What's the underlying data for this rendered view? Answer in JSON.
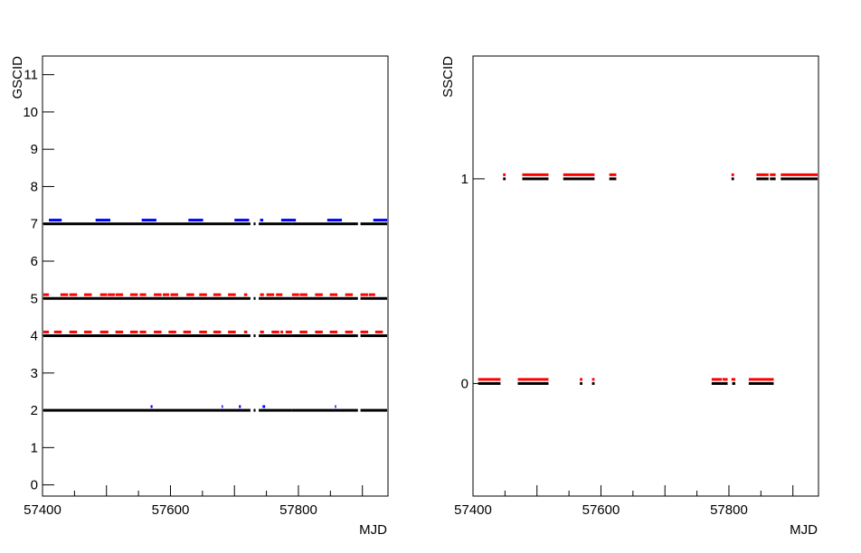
{
  "chart_data": [
    {
      "type": "scatter",
      "xlabel": "MJD",
      "ylabel": "GSCID",
      "xlim": [
        57400,
        57940
      ],
      "ylim": [
        -0.3,
        11.5
      ],
      "xticks": [
        57400,
        57600,
        57800
      ],
      "yticks": [
        0,
        1,
        2,
        3,
        4,
        5,
        6,
        7,
        8,
        9,
        10,
        11
      ],
      "grid": false,
      "series": [
        {
          "color": "#000000",
          "offset": 0,
          "segments": [
            {
              "y": 2,
              "ranges": [
                [
                  57400,
                  57725
                ],
                [
                  57730,
                  57733
                ],
                [
                  57738,
                  57790
                ],
                [
                  57790,
                  57893
                ],
                [
                  57897,
                  57940
                ]
              ]
            },
            {
              "y": 4,
              "ranges": [
                [
                  57400,
                  57725
                ],
                [
                  57730,
                  57733
                ],
                [
                  57738,
                  57790
                ],
                [
                  57790,
                  57893
                ],
                [
                  57897,
                  57940
                ]
              ]
            },
            {
              "y": 5,
              "ranges": [
                [
                  57400,
                  57725
                ],
                [
                  57730,
                  57733
                ],
                [
                  57738,
                  57790
                ],
                [
                  57790,
                  57893
                ],
                [
                  57897,
                  57940
                ]
              ]
            },
            {
              "y": 7,
              "ranges": [
                [
                  57400,
                  57725
                ],
                [
                  57730,
                  57733
                ],
                [
                  57738,
                  57790
                ],
                [
                  57790,
                  57893
                ],
                [
                  57897,
                  57940
                ]
              ]
            }
          ]
        },
        {
          "color": "#ff0000",
          "offset": 0.1,
          "segments": [
            {
              "y": 4,
              "ranges": [
                [
                  57400,
                  57410
                ],
                [
                  57418,
                  57430
                ],
                [
                  57442,
                  57454
                ],
                [
                  57465,
                  57477
                ],
                [
                  57490,
                  57503
                ],
                [
                  57514,
                  57526
                ],
                [
                  57537,
                  57549
                ],
                [
                  57552,
                  57562
                ],
                [
                  57574,
                  57586
                ],
                [
                  57597,
                  57609
                ],
                [
                  57620,
                  57632
                ],
                [
                  57645,
                  57657
                ],
                [
                  57667,
                  57679
                ],
                [
                  57690,
                  57702
                ],
                [
                  57715,
                  57720
                ],
                [
                  57740,
                  57746
                ],
                [
                  57758,
                  57770
                ],
                [
                  57772,
                  57776
                ],
                [
                  57780,
                  57790
                ],
                [
                  57802,
                  57814
                ],
                [
                  57826,
                  57838
                ],
                [
                  57849,
                  57861
                ],
                [
                  57873,
                  57885
                ],
                [
                  57897,
                  57909
                ],
                [
                  57920,
                  57932
                ]
              ]
            },
            {
              "y": 5,
              "ranges": [
                [
                  57400,
                  57410
                ],
                [
                  57428,
                  57440
                ],
                [
                  57442,
                  57454
                ],
                [
                  57465,
                  57477
                ],
                [
                  57490,
                  57501
                ],
                [
                  57502,
                  57513
                ],
                [
                  57514,
                  57526
                ],
                [
                  57537,
                  57549
                ],
                [
                  57552,
                  57562
                ],
                [
                  57574,
                  57586
                ],
                [
                  57588,
                  57598
                ],
                [
                  57600,
                  57612
                ],
                [
                  57625,
                  57637
                ],
                [
                  57645,
                  57657
                ],
                [
                  57667,
                  57679
                ],
                [
                  57690,
                  57702
                ],
                [
                  57715,
                  57720
                ],
                [
                  57740,
                  57746
                ],
                [
                  57750,
                  57762
                ],
                [
                  57765,
                  57775
                ],
                [
                  57790,
                  57801
                ],
                [
                  57802,
                  57814
                ],
                [
                  57826,
                  57838
                ],
                [
                  57849,
                  57861
                ],
                [
                  57873,
                  57885
                ],
                [
                  57897,
                  57909
                ],
                [
                  57910,
                  57920
                ]
              ]
            }
          ]
        },
        {
          "color": "#0000ff",
          "offset": 0.1,
          "segments": [
            {
              "y": 7,
              "ranges": [
                [
                  57410,
                  57430
                ],
                [
                  57483,
                  57506
                ],
                [
                  57555,
                  57578
                ],
                [
                  57628,
                  57651
                ],
                [
                  57700,
                  57723
                ],
                [
                  57740,
                  57745
                ],
                [
                  57773,
                  57796
                ],
                [
                  57845,
                  57868
                ],
                [
                  57917,
                  57940
                ]
              ]
            },
            {
              "y": 2,
              "ranges": [
                [
                  57569,
                  57572
                ],
                [
                  57680,
                  57682
                ],
                [
                  57707,
                  57710
                ],
                [
                  57744,
                  57748
                ],
                [
                  57857,
                  57859
                ]
              ]
            }
          ]
        }
      ]
    },
    {
      "type": "scatter",
      "xlabel": "MJD",
      "ylabel": "SSCID",
      "xlim": [
        57400,
        57940
      ],
      "ylim": [
        -0.55,
        1.6
      ],
      "xticks": [
        57400,
        57600,
        57800
      ],
      "yticks": [
        0,
        1
      ],
      "grid": false,
      "series": [
        {
          "color": "#000000",
          "offset": 0,
          "segments": [
            {
              "y": 1,
              "ranges": [
                [
                  57447,
                  57451
                ],
                [
                  57477,
                  57518
                ],
                [
                  57541,
                  57590
                ],
                [
                  57613,
                  57624
                ],
                [
                  57804,
                  57808
                ],
                [
                  57843,
                  57862
                ],
                [
                  57864,
                  57873
                ],
                [
                  57881,
                  57940
                ]
              ]
            },
            {
              "y": 0,
              "ranges": [
                [
                  57408,
                  57443
                ],
                [
                  57470,
                  57518
                ],
                [
                  57567,
                  57571
                ],
                [
                  57586,
                  57590
                ],
                [
                  57773,
                  57798
                ],
                [
                  57805,
                  57810
                ],
                [
                  57831,
                  57870
                ]
              ]
            }
          ]
        },
        {
          "color": "#ff0000",
          "offset": 0.02,
          "segments": [
            {
              "y": 1,
              "ranges": [
                [
                  57447,
                  57451
                ],
                [
                  57477,
                  57518
                ],
                [
                  57541,
                  57590
                ],
                [
                  57613,
                  57624
                ],
                [
                  57804,
                  57808
                ],
                [
                  57843,
                  57862
                ],
                [
                  57864,
                  57873
                ],
                [
                  57881,
                  57940
                ]
              ]
            },
            {
              "y": 0,
              "ranges": [
                [
                  57408,
                  57443
                ],
                [
                  57470,
                  57518
                ],
                [
                  57567,
                  57571
                ],
                [
                  57586,
                  57590
                ],
                [
                  57773,
                  57789
                ],
                [
                  57790,
                  57798
                ],
                [
                  57804,
                  57810
                ],
                [
                  57831,
                  57870
                ]
              ]
            }
          ]
        }
      ]
    }
  ]
}
